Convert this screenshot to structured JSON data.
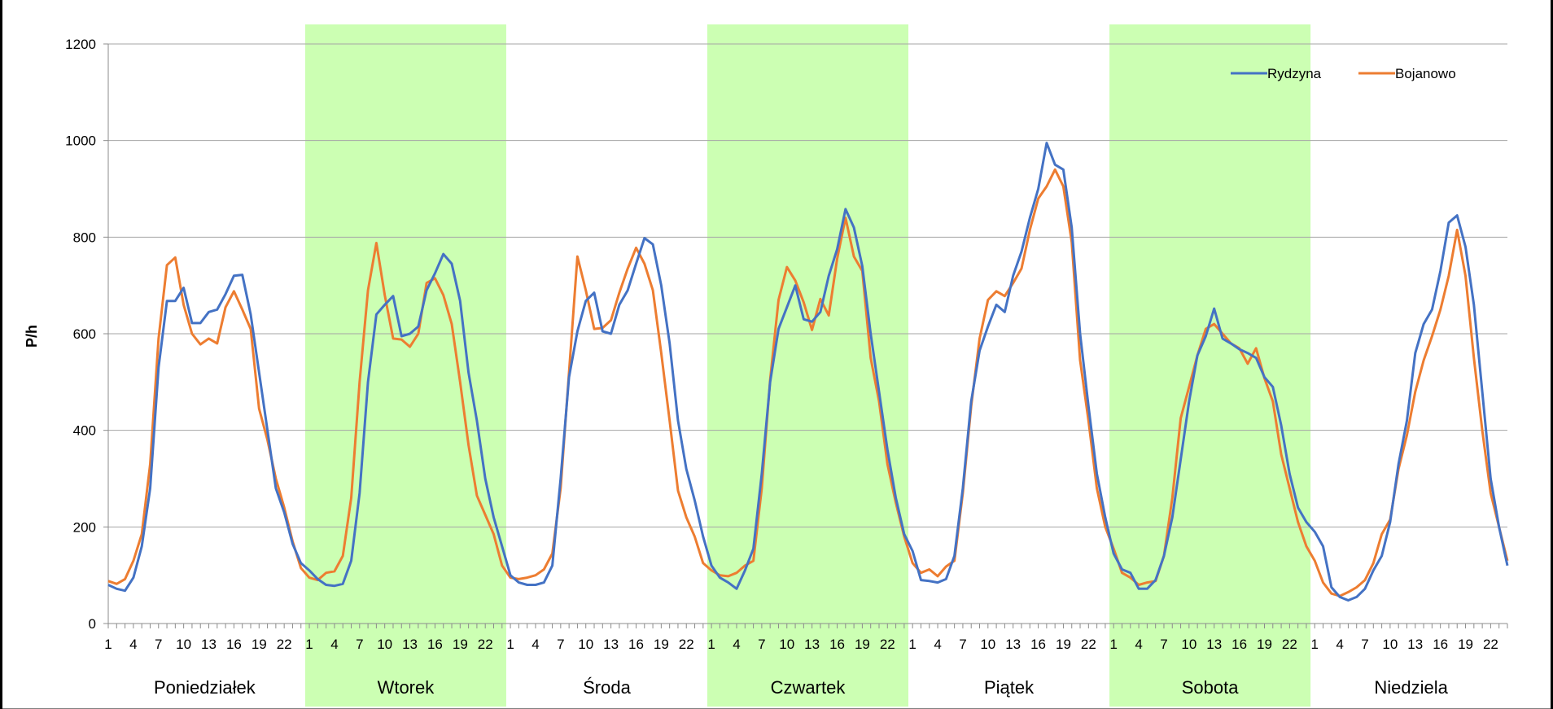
{
  "chart_data": {
    "type": "line",
    "title": "",
    "xlabel": "",
    "ylabel": "P/h",
    "ylim": [
      0,
      1200
    ],
    "yticks": [
      0,
      200,
      400,
      600,
      800,
      1000,
      1200
    ],
    "grid": true,
    "legend_position": "top-right",
    "hour_tick_labels": [
      "1",
      "4",
      "7",
      "10",
      "13",
      "16",
      "19",
      "22"
    ],
    "days": [
      "Poniedziałek",
      "Wtorek",
      "Środa",
      "Czwartek",
      "Piątek",
      "Sobota",
      "Niedziela"
    ],
    "shaded_days": [
      "Wtorek",
      "Czwartek",
      "Sobota"
    ],
    "shade_color": "#ccffb3",
    "series": [
      {
        "name": "Rydzyna",
        "color": "#4472c4",
        "values": [
          80,
          72,
          68,
          95,
          160,
          280,
          530,
          668,
          668,
          695,
          622,
          622,
          645,
          650,
          682,
          720,
          722,
          640,
          520,
          400,
          280,
          230,
          165,
          125,
          110,
          92,
          80,
          78,
          82,
          130,
          270,
          500,
          640,
          660,
          678,
          595,
          600,
          615,
          690,
          725,
          765,
          745,
          668,
          520,
          420,
          300,
          220,
          160,
          100,
          85,
          80,
          80,
          85,
          120,
          300,
          510,
          605,
          668,
          685,
          605,
          600,
          660,
          690,
          745,
          798,
          785,
          700,
          580,
          420,
          320,
          255,
          180,
          120,
          95,
          85,
          72,
          110,
          155,
          310,
          500,
          610,
          655,
          700,
          630,
          625,
          645,
          720,
          775,
          858,
          820,
          740,
          600,
          480,
          360,
          260,
          185,
          150,
          90,
          88,
          85,
          92,
          140,
          280,
          460,
          565,
          615,
          660,
          645,
          720,
          770,
          840,
          900,
          995,
          950,
          940,
          820,
          600,
          450,
          310,
          220,
          145,
          112,
          105,
          72,
          72,
          90,
          140,
          220,
          340,
          460,
          555,
          595,
          652,
          590,
          580,
          568,
          560,
          550,
          510,
          490,
          410,
          310,
          240,
          210,
          190,
          160,
          75,
          55,
          48,
          55,
          72,
          110,
          140,
          210,
          330,
          420,
          560,
          620,
          650,
          730,
          830,
          845,
          780,
          660,
          480,
          300,
          200,
          120
        ]
      },
      {
        "name": "Bojanowo",
        "color": "#ed7d31",
        "values": [
          88,
          82,
          92,
          130,
          185,
          330,
          590,
          742,
          758,
          660,
          600,
          578,
          590,
          580,
          655,
          688,
          650,
          610,
          445,
          380,
          300,
          240,
          170,
          115,
          95,
          90,
          105,
          108,
          140,
          260,
          500,
          690,
          788,
          680,
          590,
          588,
          573,
          600,
          705,
          715,
          680,
          620,
          500,
          370,
          265,
          225,
          185,
          120,
          95,
          92,
          95,
          100,
          112,
          145,
          280,
          520,
          760,
          690,
          610,
          612,
          628,
          685,
          735,
          778,
          745,
          690,
          560,
          420,
          275,
          220,
          180,
          125,
          110,
          100,
          98,
          105,
          120,
          130,
          280,
          505,
          670,
          738,
          710,
          665,
          608,
          672,
          638,
          755,
          840,
          760,
          730,
          550,
          460,
          330,
          250,
          180,
          125,
          105,
          112,
          98,
          118,
          130,
          270,
          450,
          590,
          670,
          688,
          678,
          705,
          735,
          815,
          880,
          905,
          940,
          905,
          790,
          545,
          420,
          280,
          200,
          155,
          105,
          95,
          80,
          85,
          88,
          140,
          260,
          425,
          490,
          555,
          610,
          620,
          600,
          580,
          570,
          538,
          570,
          508,
          460,
          350,
          280,
          210,
          160,
          130,
          85,
          62,
          57,
          65,
          75,
          90,
          125,
          185,
          215,
          320,
          390,
          480,
          545,
          595,
          650,
          720,
          815,
          720,
          550,
          400,
          270,
          200,
          130
        ]
      }
    ]
  }
}
